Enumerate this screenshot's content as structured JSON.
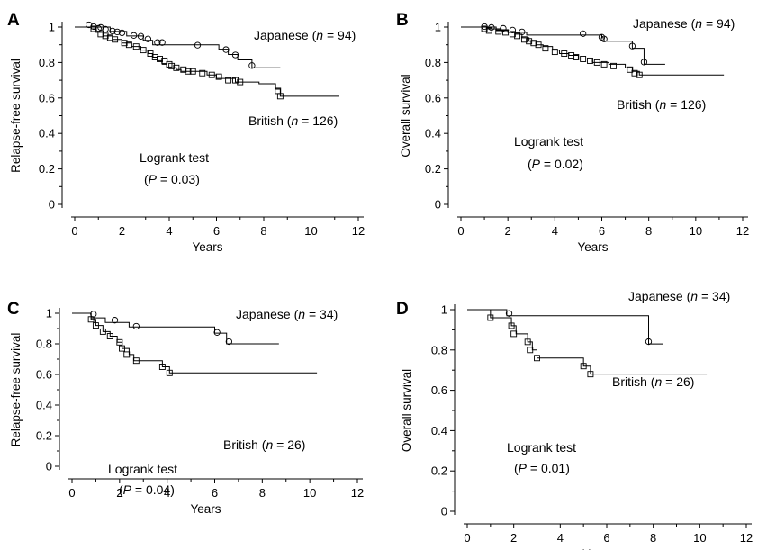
{
  "chart_data": [
    {
      "panel": "A",
      "type": "line",
      "xlabel": "Years",
      "ylabel": "Relapse-free survival",
      "xlim": [
        0,
        12
      ],
      "ylim": [
        0,
        1
      ],
      "xticks": [
        "0",
        "2",
        "4",
        "6",
        "8",
        "10",
        "12"
      ],
      "yticks": [
        "0",
        "0.2",
        "0.4",
        "0.6",
        "0.8",
        "1"
      ],
      "grid": false,
      "annotations": [
        {
          "pre": "Japanese (",
          "n": "n",
          "post": " = 94)"
        },
        {
          "pre": "British (",
          "n": "n",
          "post": " = 126)"
        },
        {
          "text": "Logrank test"
        },
        {
          "pre": "(",
          "n": "P",
          "post": " = 0.03)"
        }
      ],
      "series": [
        {
          "marker": "circle",
          "steps": [
            [
              0,
              1
            ],
            [
              1.5,
              0.975
            ],
            [
              2.2,
              0.95
            ],
            [
              2.9,
              0.925
            ],
            [
              3.3,
              0.9
            ],
            [
              6.1,
              0.875
            ],
            [
              6.5,
              0.845
            ],
            [
              6.9,
              0.815
            ],
            [
              7.5,
              0.77
            ],
            [
              8.7,
              0.77
            ]
          ],
          "censored": [
            [
              0.6,
              1
            ],
            [
              0.8,
              0.99
            ],
            [
              1.0,
              0.98
            ],
            [
              1.1,
              0.985
            ],
            [
              1.3,
              0.975
            ],
            [
              1.6,
              0.965
            ],
            [
              1.8,
              0.96
            ],
            [
              2.0,
              0.955
            ],
            [
              2.5,
              0.94
            ],
            [
              2.8,
              0.935
            ],
            [
              3.1,
              0.92
            ],
            [
              3.5,
              0.9
            ],
            [
              3.7,
              0.9
            ],
            [
              5.2,
              0.885
            ],
            [
              6.4,
              0.86
            ],
            [
              6.8,
              0.83
            ],
            [
              7.5,
              0.77
            ]
          ]
        },
        {
          "marker": "square",
          "steps": [
            [
              0,
              1
            ],
            [
              0.7,
              0.99
            ],
            [
              0.9,
              0.97
            ],
            [
              1.2,
              0.95
            ],
            [
              1.6,
              0.93
            ],
            [
              2.0,
              0.91
            ],
            [
              2.4,
              0.89
            ],
            [
              2.8,
              0.87
            ],
            [
              3.1,
              0.85
            ],
            [
              3.3,
              0.83
            ],
            [
              3.5,
              0.81
            ],
            [
              3.7,
              0.79
            ],
            [
              3.9,
              0.77
            ],
            [
              4.3,
              0.76
            ],
            [
              4.5,
              0.75
            ],
            [
              5.6,
              0.73
            ],
            [
              6.0,
              0.71
            ],
            [
              6.8,
              0.69
            ],
            [
              7.8,
              0.68
            ],
            [
              8.5,
              0.65
            ],
            [
              8.7,
              0.61
            ],
            [
              11.2,
              0.61
            ]
          ],
          "censored": [
            [
              0.8,
              0.99
            ],
            [
              1.1,
              0.96
            ],
            [
              1.3,
              0.95
            ],
            [
              1.5,
              0.94
            ],
            [
              1.7,
              0.93
            ],
            [
              2.1,
              0.91
            ],
            [
              2.3,
              0.9
            ],
            [
              2.6,
              0.89
            ],
            [
              2.9,
              0.87
            ],
            [
              3.2,
              0.85
            ],
            [
              3.4,
              0.83
            ],
            [
              3.6,
              0.82
            ],
            [
              3.8,
              0.81
            ],
            [
              4.0,
              0.79
            ],
            [
              4.1,
              0.78
            ],
            [
              4.3,
              0.77
            ],
            [
              4.6,
              0.76
            ],
            [
              4.8,
              0.75
            ],
            [
              5.0,
              0.75
            ],
            [
              5.4,
              0.74
            ],
            [
              5.8,
              0.73
            ],
            [
              6.1,
              0.72
            ],
            [
              6.5,
              0.7
            ],
            [
              6.8,
              0.7
            ],
            [
              7.0,
              0.69
            ],
            [
              8.6,
              0.64
            ],
            [
              8.7,
              0.61
            ]
          ]
        }
      ]
    },
    {
      "panel": "B",
      "type": "line",
      "xlabel": "Years",
      "ylabel": "Overall survival",
      "xlim": [
        0,
        12
      ],
      "ylim": [
        0,
        1
      ],
      "xticks": [
        "0",
        "2",
        "4",
        "6",
        "8",
        "10",
        "12"
      ],
      "yticks": [
        "0",
        "0.2",
        "0.4",
        "0.6",
        "0.8",
        "1"
      ],
      "grid": false,
      "annotations": [
        {
          "pre": "Japanese (",
          "n": "n",
          "post": " = 94)"
        },
        {
          "pre": "British (",
          "n": "n",
          "post": " = 126)"
        },
        {
          "text": "Logrank test"
        },
        {
          "pre": "(",
          "n": "P",
          "post": " = 0.02)"
        }
      ],
      "series": [
        {
          "marker": "circle",
          "steps": [
            [
              0,
              1
            ],
            [
              1.5,
              0.985
            ],
            [
              2.0,
              0.97
            ],
            [
              2.8,
              0.955
            ],
            [
              6.0,
              0.94
            ],
            [
              6.1,
              0.92
            ],
            [
              7.3,
              0.88
            ],
            [
              7.8,
              0.79
            ],
            [
              8.7,
              0.79
            ]
          ],
          "censored": [
            [
              1.0,
              0.99
            ],
            [
              1.3,
              0.985
            ],
            [
              1.8,
              0.98
            ],
            [
              2.2,
              0.97
            ],
            [
              2.6,
              0.96
            ],
            [
              5.2,
              0.95
            ],
            [
              6.0,
              0.93
            ],
            [
              6.1,
              0.92
            ],
            [
              7.3,
              0.88
            ],
            [
              7.8,
              0.79
            ]
          ]
        },
        {
          "marker": "square",
          "steps": [
            [
              0,
              1
            ],
            [
              1.1,
              0.99
            ],
            [
              1.5,
              0.98
            ],
            [
              2.0,
              0.97
            ],
            [
              2.3,
              0.96
            ],
            [
              2.6,
              0.94
            ],
            [
              2.9,
              0.92
            ],
            [
              3.2,
              0.9
            ],
            [
              3.5,
              0.89
            ],
            [
              3.9,
              0.87
            ],
            [
              4.2,
              0.85
            ],
            [
              4.6,
              0.84
            ],
            [
              5.0,
              0.82
            ],
            [
              5.6,
              0.8
            ],
            [
              6.3,
              0.79
            ],
            [
              7.0,
              0.77
            ],
            [
              7.3,
              0.75
            ],
            [
              7.6,
              0.73
            ],
            [
              11.2,
              0.73
            ]
          ],
          "censored": [
            [
              1.0,
              0.99
            ],
            [
              1.2,
              0.98
            ],
            [
              1.6,
              0.975
            ],
            [
              1.9,
              0.97
            ],
            [
              2.2,
              0.96
            ],
            [
              2.4,
              0.95
            ],
            [
              2.7,
              0.93
            ],
            [
              2.9,
              0.92
            ],
            [
              3.1,
              0.91
            ],
            [
              3.3,
              0.9
            ],
            [
              3.6,
              0.88
            ],
            [
              4.0,
              0.86
            ],
            [
              4.4,
              0.85
            ],
            [
              4.7,
              0.84
            ],
            [
              4.9,
              0.83
            ],
            [
              5.2,
              0.82
            ],
            [
              5.5,
              0.81
            ],
            [
              5.8,
              0.8
            ],
            [
              6.1,
              0.79
            ],
            [
              6.5,
              0.78
            ],
            [
              7.2,
              0.76
            ],
            [
              7.4,
              0.74
            ],
            [
              7.6,
              0.73
            ]
          ]
        }
      ]
    },
    {
      "panel": "C",
      "type": "line",
      "xlabel": "Years",
      "ylabel": "Relapse-free survival",
      "xlim": [
        0,
        12
      ],
      "ylim": [
        0,
        1
      ],
      "xticks": [
        "0",
        "2",
        "4",
        "6",
        "8",
        "10",
        "12"
      ],
      "yticks": [
        "0",
        "0.2",
        "0.4",
        "0.6",
        "0.8",
        "1"
      ],
      "grid": false,
      "annotations": [
        {
          "pre": "Japanese (",
          "n": "n",
          "post": " = 34)"
        },
        {
          "pre": "British (",
          "n": "n",
          "post": " = 26)"
        },
        {
          "text": "Logrank test"
        },
        {
          "pre": "(",
          "n": "P",
          "post": " = 0.04)"
        }
      ],
      "series": [
        {
          "marker": "circle",
          "steps": [
            [
              0,
              1
            ],
            [
              0.8,
              0.97
            ],
            [
              1.4,
              0.94
            ],
            [
              2.4,
              0.91
            ],
            [
              6.0,
              0.87
            ],
            [
              6.5,
              0.8
            ],
            [
              8.7,
              0.8
            ]
          ],
          "censored": [
            [
              0.9,
              0.98
            ],
            [
              1.8,
              0.94
            ],
            [
              2.7,
              0.9
            ],
            [
              6.1,
              0.86
            ],
            [
              6.6,
              0.8
            ]
          ]
        },
        {
          "marker": "square",
          "steps": [
            [
              0,
              1
            ],
            [
              0.8,
              0.96
            ],
            [
              1.0,
              0.92
            ],
            [
              1.3,
              0.88
            ],
            [
              1.6,
              0.85
            ],
            [
              1.9,
              0.81
            ],
            [
              2.1,
              0.77
            ],
            [
              2.4,
              0.73
            ],
            [
              2.6,
              0.69
            ],
            [
              3.8,
              0.65
            ],
            [
              4.1,
              0.61
            ],
            [
              10.3,
              0.61
            ]
          ],
          "censored": [
            [
              0.8,
              0.96
            ],
            [
              1.0,
              0.92
            ],
            [
              1.3,
              0.88
            ],
            [
              1.6,
              0.85
            ],
            [
              2.0,
              0.81
            ],
            [
              2.1,
              0.77
            ],
            [
              2.3,
              0.73
            ],
            [
              2.7,
              0.69
            ],
            [
              3.8,
              0.65
            ],
            [
              4.1,
              0.61
            ]
          ]
        }
      ]
    },
    {
      "panel": "D",
      "type": "line",
      "xlabel": "Years",
      "ylabel": "Overall survival",
      "xlim": [
        0,
        12
      ],
      "ylim": [
        0,
        1
      ],
      "xticks": [
        "0",
        "2",
        "4",
        "6",
        "8",
        "10",
        "12"
      ],
      "yticks": [
        "0",
        "0.2",
        "0.4",
        "0.6",
        "0.8",
        "1"
      ],
      "grid": false,
      "annotations": [
        {
          "pre": "Japanese (",
          "n": "n",
          "post": " = 34)"
        },
        {
          "pre": "British (",
          "n": "n",
          "post": " = 26)"
        },
        {
          "text": "Logrank test"
        },
        {
          "pre": "(",
          "n": "P",
          "post": " = 0.01)"
        }
      ],
      "series": [
        {
          "marker": "circle",
          "steps": [
            [
              0,
              1
            ],
            [
              1.7,
              0.97
            ],
            [
              7.8,
              0.83
            ],
            [
              8.4,
              0.83
            ]
          ],
          "censored": [
            [
              1.8,
              0.97
            ],
            [
              7.8,
              0.83
            ]
          ]
        },
        {
          "marker": "square",
          "steps": [
            [
              0,
              1
            ],
            [
              1.0,
              0.96
            ],
            [
              1.7,
              0.96
            ],
            [
              1.9,
              0.92
            ],
            [
              2.1,
              0.88
            ],
            [
              2.6,
              0.84
            ],
            [
              2.8,
              0.8
            ],
            [
              3.0,
              0.76
            ],
            [
              5.0,
              0.72
            ],
            [
              5.3,
              0.68
            ],
            [
              10.3,
              0.68
            ]
          ],
          "censored": [
            [
              1.0,
              0.96
            ],
            [
              1.9,
              0.92
            ],
            [
              2.0,
              0.88
            ],
            [
              2.6,
              0.84
            ],
            [
              2.7,
              0.8
            ],
            [
              3.0,
              0.76
            ],
            [
              5.0,
              0.72
            ],
            [
              5.3,
              0.68
            ]
          ]
        }
      ]
    }
  ]
}
